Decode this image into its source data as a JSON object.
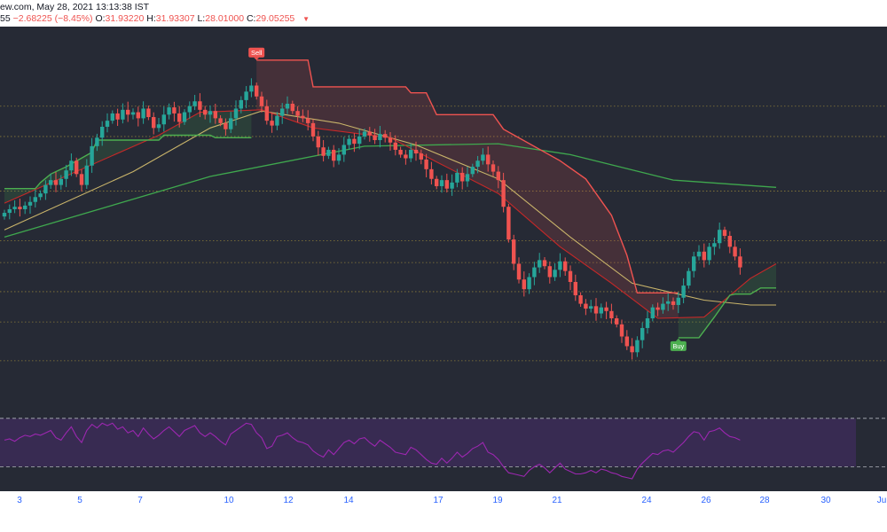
{
  "header": {
    "line1": "ew.com, May 28, 2021 13:13:38 IST",
    "line2_prefix": "55",
    "change": "−2.68225 (−8.45%)",
    "o_label": "O:",
    "o_value": "31.93220",
    "h_label": "H:",
    "h_value": "31.93307",
    "l_label": "L:",
    "l_value": "28.01000",
    "c_label": "C:",
    "c_value": "29.05255"
  },
  "chart_data": {
    "type": "candlestick",
    "x_tick_labels": [
      "3",
      "5",
      "7",
      "10",
      "12",
      "14",
      "17",
      "19",
      "21",
      "24",
      "26",
      "28",
      "30",
      "Ju"
    ],
    "colors": {
      "background": "#262a35",
      "up": "#26a69a",
      "down": "#ef5350",
      "rsi_line": "#9c27b0",
      "rsi_band": "#3b2b55",
      "ma_long": "#3fa84e",
      "ma_mid": "#c9b46a",
      "ma_short": "#c62828",
      "stop_sell": "#ef5350",
      "stop_buy": "#4caf50",
      "level_line": "#9c8a3a",
      "axis_text": "#2962ff"
    },
    "series": [
      {
        "name": "price",
        "close": [
          22.6,
          22.9,
          23.1,
          22.9,
          23.2,
          23.5,
          23.9,
          24.2,
          24.9,
          25.3,
          24.9,
          25.4,
          26.1,
          26.9,
          25.8,
          24.9,
          26.5,
          28.1,
          28.8,
          29.7,
          30.2,
          30.8,
          30.3,
          31.1,
          30.7,
          30.9,
          30.4,
          31.2,
          30.5,
          29.6,
          29.9,
          30.7,
          31.3,
          30.8,
          30.1,
          30.9,
          31.4,
          31.8,
          31.1,
          30.7,
          31.0,
          30.4,
          30.0,
          29.5,
          30.4,
          31.2,
          31.9,
          32.6,
          33.1,
          32.2,
          31.4,
          30.2,
          29.8,
          30.6,
          31.2,
          31.6,
          31.0,
          30.6,
          30.4,
          30.0,
          28.9,
          28.0,
          27.3,
          27.8,
          26.9,
          27.4,
          28.2,
          28.7,
          28.3,
          28.9,
          29.3,
          29.0,
          28.6,
          29.1,
          28.8,
          28.4,
          27.8,
          27.4,
          27.1,
          27.8,
          27.5,
          27.0,
          26.2,
          25.4,
          24.8,
          25.3,
          24.6,
          25.1,
          25.9,
          25.2,
          25.8,
          26.4,
          26.9,
          27.4,
          26.6,
          26.0,
          25.3,
          23.1,
          20.4,
          18.4,
          17.1,
          16.3,
          17.3,
          18.1,
          18.7,
          18.2,
          17.3,
          17.9,
          18.6,
          17.8,
          16.9,
          15.8,
          15.1,
          14.7,
          14.9,
          14.3,
          14.8,
          14.5,
          13.9,
          13.4,
          12.4,
          11.6,
          11.1,
          12.1,
          13.1,
          13.9,
          14.8,
          14.6,
          15.1,
          15.3,
          15.0,
          15.6,
          16.6,
          17.8,
          19.0,
          19.4,
          18.7,
          19.8,
          20.1,
          21.2,
          20.7,
          19.8,
          19.0,
          18.1
        ]
      },
      {
        "name": "rsi",
        "values": [
          52,
          53,
          51,
          54,
          56,
          55,
          57,
          56,
          58,
          60,
          54,
          52,
          58,
          63,
          55,
          50,
          60,
          65,
          62,
          66,
          64,
          66,
          61,
          63,
          58,
          60,
          55,
          62,
          57,
          53,
          56,
          60,
          63,
          59,
          55,
          60,
          62,
          64,
          58,
          55,
          58,
          55,
          51,
          48,
          57,
          60,
          63,
          66,
          65,
          58,
          54,
          45,
          47,
          55,
          56,
          58,
          54,
          51,
          50,
          48,
          43,
          40,
          38,
          44,
          40,
          45,
          50,
          52,
          49,
          53,
          54,
          50,
          47,
          52,
          49,
          46,
          42,
          41,
          40,
          46,
          44,
          40,
          36,
          33,
          32,
          37,
          33,
          37,
          42,
          38,
          41,
          45,
          47,
          50,
          42,
          40,
          36,
          30,
          25,
          24,
          23,
          22,
          27,
          30,
          32,
          29,
          25,
          29,
          33,
          28,
          26,
          24,
          24,
          25,
          27,
          25,
          28,
          27,
          25,
          24,
          22,
          21,
          20,
          28,
          33,
          37,
          41,
          40,
          43,
          44,
          42,
          46,
          50,
          55,
          59,
          58,
          52,
          59,
          60,
          62,
          58,
          55,
          54,
          52
        ],
        "ylim": [
          20,
          75
        ],
        "band": [
          30,
          70
        ]
      }
    ],
    "moving_averages": {
      "short": [
        [
          0,
          23.4
        ],
        [
          30,
          29.0
        ],
        [
          38,
          30.9
        ],
        [
          50,
          31.1
        ],
        [
          60,
          29.6
        ],
        [
          75,
          28.8
        ],
        [
          84,
          26.8
        ],
        [
          96,
          24.2
        ],
        [
          108,
          19.8
        ],
        [
          118,
          16.8
        ],
        [
          127,
          13.9
        ],
        [
          136,
          14.0
        ],
        [
          145,
          17.2
        ],
        [
          150,
          18.4
        ]
      ],
      "mid": [
        [
          0,
          21.2
        ],
        [
          25,
          26.0
        ],
        [
          40,
          29.6
        ],
        [
          50,
          31.0
        ],
        [
          65,
          30.0
        ],
        [
          80,
          28.2
        ],
        [
          96,
          25.4
        ],
        [
          110,
          20.6
        ],
        [
          122,
          16.8
        ],
        [
          136,
          15.4
        ],
        [
          145,
          15.0
        ],
        [
          150,
          15.0
        ]
      ],
      "long": [
        [
          0,
          20.6
        ],
        [
          40,
          25.6
        ],
        [
          70,
          28.1
        ],
        [
          96,
          28.3
        ],
        [
          110,
          27.4
        ],
        [
          130,
          25.3
        ],
        [
          150,
          24.7
        ]
      ]
    },
    "trailing_stop": {
      "buy_1": [
        [
          0,
          24.6
        ],
        [
          6,
          24.6
        ],
        [
          7,
          25.1
        ],
        [
          9,
          25.8
        ],
        [
          12,
          26.4
        ],
        [
          17,
          27.6
        ],
        [
          18,
          28.6
        ],
        [
          30,
          28.6
        ],
        [
          31,
          29.0
        ],
        [
          40,
          29.0
        ],
        [
          41,
          28.8
        ],
        [
          48,
          28.8
        ]
      ],
      "sell_1": [
        [
          49,
          35.2
        ],
        [
          59,
          35.2
        ],
        [
          60,
          33.0
        ],
        [
          78,
          33.0
        ],
        [
          79,
          32.5
        ],
        [
          82,
          32.5
        ],
        [
          84,
          30.7
        ],
        [
          95,
          30.7
        ],
        [
          97,
          29.5
        ],
        [
          108,
          26.9
        ],
        [
          113,
          25.4
        ],
        [
          118,
          22.4
        ],
        [
          121,
          19.1
        ],
        [
          123,
          16.0
        ],
        [
          131,
          16.0
        ]
      ],
      "buy_2": [
        [
          131,
          12.3
        ],
        [
          135,
          12.3
        ],
        [
          138,
          14.0
        ],
        [
          141,
          15.8
        ],
        [
          142,
          15.9
        ],
        [
          145,
          15.9
        ],
        [
          147,
          16.4
        ],
        [
          150,
          16.4
        ]
      ]
    },
    "signals": [
      {
        "label": "Sell",
        "index": 49,
        "value": 35.2
      },
      {
        "label": "Buy",
        "index": 131,
        "value": 12.3
      }
    ],
    "horizontal_levels": [
      31.4,
      28.9,
      24.4,
      20.3,
      18.5,
      16.1,
      13.6,
      10.4
    ],
    "ylim": [
      9.0,
      36.5
    ]
  }
}
